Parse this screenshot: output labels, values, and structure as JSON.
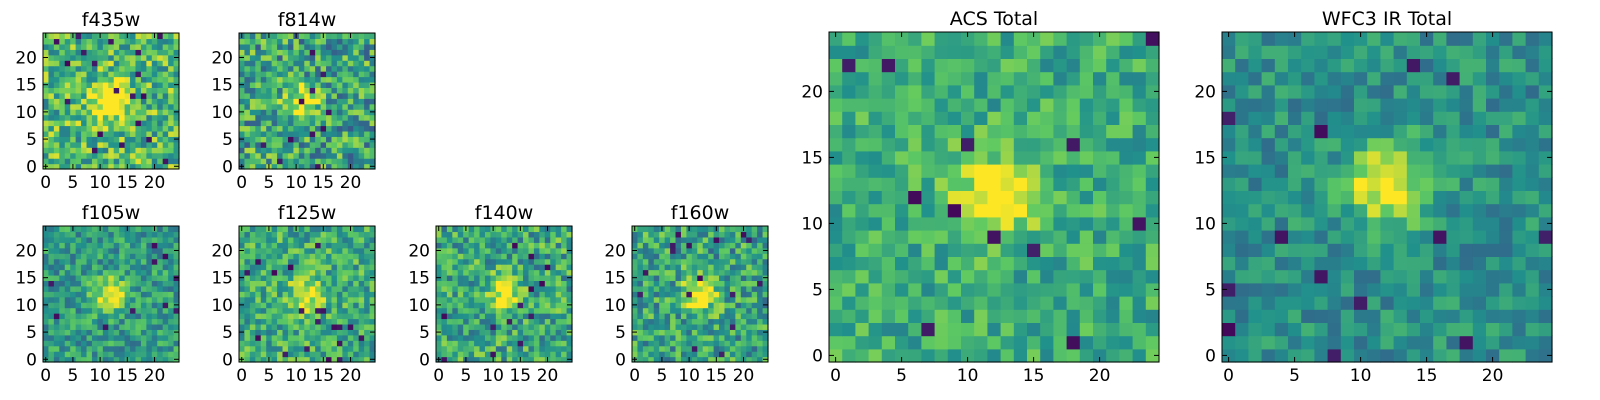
{
  "figure": {
    "colormap": "viridis",
    "colormap_stops": [
      "#440154",
      "#3b528b",
      "#21918c",
      "#5ec962",
      "#fde725"
    ]
  },
  "chart_data": [
    {
      "type": "heatmap",
      "title": "f435w",
      "xticks": [
        "0",
        "5",
        "10",
        "15",
        "20"
      ],
      "yticks": [
        "0",
        "5",
        "10",
        "15",
        "20"
      ],
      "xlim": [
        -0.5,
        24.5
      ],
      "ylim": [
        -0.5,
        24.5
      ],
      "grid_size": [
        25,
        25
      ],
      "source_center": [
        12,
        12
      ],
      "source_peak": 0.55,
      "noise_level": 0.55,
      "background": 0.68
    },
    {
      "type": "heatmap",
      "title": "f814w",
      "xticks": [
        "0",
        "5",
        "10",
        "15",
        "20"
      ],
      "yticks": [
        "0",
        "5",
        "10",
        "15",
        "20"
      ],
      "xlim": [
        -0.5,
        24.5
      ],
      "ylim": [
        -0.5,
        24.5
      ],
      "grid_size": [
        25,
        25
      ],
      "source_center": [
        11,
        12
      ],
      "source_peak": 0.5,
      "noise_level": 0.6,
      "background": 0.58
    },
    {
      "type": "heatmap",
      "title": "f105w",
      "xticks": [
        "0",
        "5",
        "10",
        "15",
        "20"
      ],
      "yticks": [
        "0",
        "5",
        "10",
        "15",
        "20"
      ],
      "xlim": [
        -0.5,
        24.5
      ],
      "ylim": [
        -0.5,
        24.5
      ],
      "grid_size": [
        25,
        25
      ],
      "source_center": [
        12,
        12
      ],
      "source_peak": 0.45,
      "noise_level": 0.4,
      "background": 0.55
    },
    {
      "type": "heatmap",
      "title": "f125w",
      "xticks": [
        "0",
        "5",
        "10",
        "15",
        "20"
      ],
      "yticks": [
        "0",
        "5",
        "10",
        "15",
        "20"
      ],
      "xlim": [
        -0.5,
        24.5
      ],
      "ylim": [
        -0.5,
        24.5
      ],
      "grid_size": [
        25,
        25
      ],
      "source_center": [
        12,
        12
      ],
      "source_peak": 0.4,
      "noise_level": 0.45,
      "background": 0.62
    },
    {
      "type": "heatmap",
      "title": "f140w",
      "xticks": [
        "0",
        "5",
        "10",
        "15",
        "20"
      ],
      "yticks": [
        "0",
        "5",
        "10",
        "15",
        "20"
      ],
      "xlim": [
        -0.5,
        24.5
      ],
      "ylim": [
        -0.5,
        24.5
      ],
      "grid_size": [
        25,
        25
      ],
      "source_center": [
        12,
        12
      ],
      "source_peak": 0.45,
      "noise_level": 0.5,
      "background": 0.6
    },
    {
      "type": "heatmap",
      "title": "f160w",
      "xticks": [
        "0",
        "5",
        "10",
        "15",
        "20"
      ],
      "yticks": [
        "0",
        "5",
        "10",
        "15",
        "20"
      ],
      "xlim": [
        -0.5,
        24.5
      ],
      "ylim": [
        -0.5,
        24.5
      ],
      "grid_size": [
        25,
        25
      ],
      "source_center": [
        12,
        12
      ],
      "source_peak": 0.5,
      "noise_level": 0.5,
      "background": 0.58
    },
    {
      "type": "heatmap",
      "title": "ACS Total",
      "xticks": [
        "0",
        "5",
        "10",
        "15",
        "20"
      ],
      "yticks": [
        "0",
        "5",
        "10",
        "15",
        "20"
      ],
      "xlim": [
        -0.5,
        24.5
      ],
      "ylim": [
        -0.5,
        24.5
      ],
      "grid_size": [
        25,
        25
      ],
      "source_center": [
        12,
        12
      ],
      "source_peak": 0.45,
      "noise_level": 0.35,
      "background": 0.62
    },
    {
      "type": "heatmap",
      "title": "WFC3 IR Total",
      "xticks": [
        "0",
        "5",
        "10",
        "15",
        "20"
      ],
      "yticks": [
        "0",
        "5",
        "10",
        "15",
        "20"
      ],
      "xlim": [
        -0.5,
        24.5
      ],
      "ylim": [
        -0.5,
        24.5
      ],
      "grid_size": [
        25,
        25
      ],
      "source_center": [
        12,
        13
      ],
      "source_peak": 0.55,
      "noise_level": 0.3,
      "background": 0.5
    }
  ]
}
